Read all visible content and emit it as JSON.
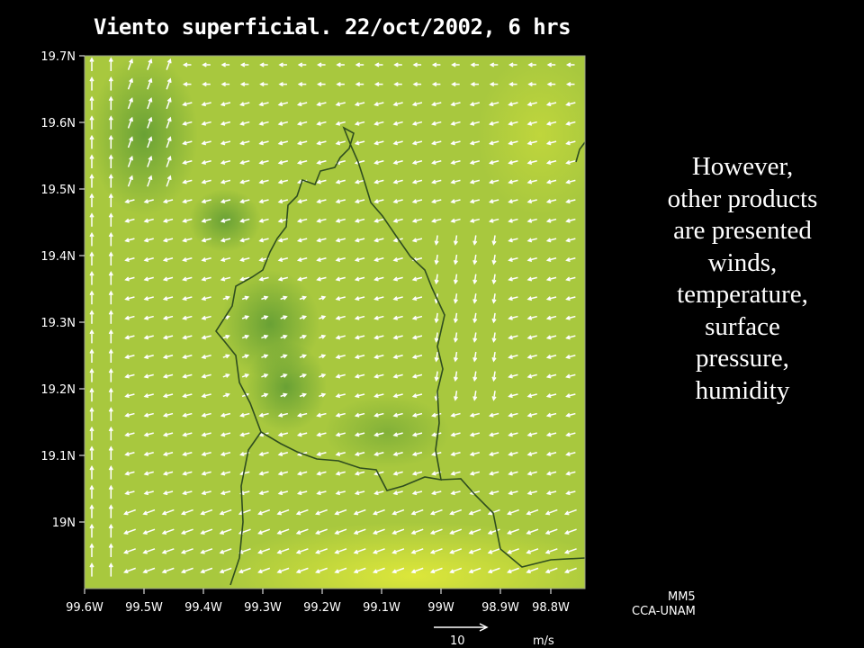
{
  "title": "Viento superficial. 22/oct/2002, 6 hrs",
  "y_axis_labels": [
    "19.7N",
    "19.6N",
    "19.5N",
    "19.4N",
    "19.3N",
    "19.2N",
    "19.1N",
    "19N"
  ],
  "x_axis_labels": [
    "99.6W",
    "99.5W",
    "99.4W",
    "99.3W",
    "99.2W",
    "99.1W",
    "99W",
    "98.9W",
    "98.8W"
  ],
  "credits": [
    "MM5",
    "CCA-UNAM"
  ],
  "scale_value": "10",
  "scale_unit": "m/s",
  "side_text_lines": [
    "However,",
    "other products",
    "are presented",
    "winds,",
    "temperature,",
    "surface",
    "pressure,",
    "humidity"
  ],
  "colors": {
    "background": "#000000",
    "field_base": "#a8c83e",
    "field_dark": "#5e9a33",
    "field_light": "#d4e23a",
    "boundary": "#2f4d1f",
    "vectors": "#ffffff"
  }
}
